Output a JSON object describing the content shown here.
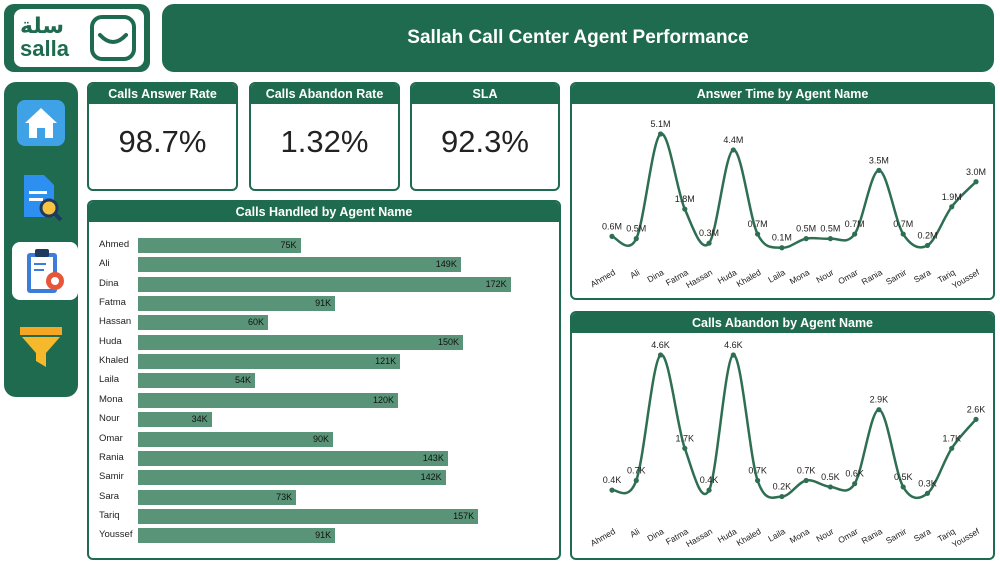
{
  "brand": {
    "arabic_name": "سلة",
    "latin_name": "salla"
  },
  "header": {
    "title": "Sallah Call Center Agent Performance"
  },
  "sidebar": {
    "items": [
      {
        "icon": "home-icon"
      },
      {
        "icon": "document-search-icon"
      },
      {
        "icon": "clipboard-gear-icon",
        "active": true
      },
      {
        "icon": "filter-icon"
      }
    ]
  },
  "kpis": [
    {
      "title": "Calls Answer Rate",
      "value": "98.7%"
    },
    {
      "title": "Calls Abandon Rate",
      "value": "1.32%"
    },
    {
      "title": "SLA",
      "value": "92.3%"
    }
  ],
  "colors": {
    "primary": "#1f6b4f",
    "bar": "#5a9478"
  },
  "chart_data": [
    {
      "type": "bar",
      "orientation": "horizontal",
      "title": "Calls Handled by Agent Name",
      "categories": [
        "Ahmed",
        "Ali",
        "Dina",
        "Fatma",
        "Hassan",
        "Huda",
        "Khaled",
        "Laila",
        "Mona",
        "Nour",
        "Omar",
        "Rania",
        "Samir",
        "Sara",
        "Tariq",
        "Youssef"
      ],
      "values": [
        75,
        149,
        172,
        91,
        60,
        150,
        121,
        54,
        120,
        34,
        90,
        143,
        142,
        73,
        157,
        91
      ],
      "labels": [
        "75K",
        "149K",
        "172K",
        "91K",
        "60K",
        "150K",
        "121K",
        "54K",
        "120K",
        "34K",
        "90K",
        "143K",
        "142K",
        "73K",
        "157K",
        "91K"
      ],
      "xlim": [
        0,
        180
      ]
    },
    {
      "type": "line",
      "title": "Answer Time by Agent Name",
      "categories": [
        "Ahmed",
        "Ali",
        "Dina",
        "Fatma",
        "Hassan",
        "Huda",
        "Khaled",
        "Laila",
        "Mona",
        "Nour",
        "Omar",
        "Rania",
        "Samir",
        "Sara",
        "Tariq",
        "Youssef"
      ],
      "values": [
        0.6,
        0.5,
        5.1,
        1.8,
        0.3,
        4.4,
        0.7,
        0.1,
        0.5,
        0.5,
        0.7,
        3.5,
        0.7,
        0.2,
        1.9,
        3.0
      ],
      "labels": [
        "0.6M",
        "0.5M",
        "5.1M",
        "1.8M",
        "0.3M",
        "4.4M",
        "0.7M",
        "0.1M",
        "0.5M",
        "0.5M",
        "0.7M",
        "3.5M",
        "0.7M",
        "0.2M",
        "1.9M",
        "3.0M"
      ],
      "ylim": [
        0,
        5.1
      ]
    },
    {
      "type": "line",
      "title": "Calls Abandon by Agent Name",
      "categories": [
        "Ahmed",
        "Ali",
        "Dina",
        "Fatma",
        "Hassan",
        "Huda",
        "Khaled",
        "Laila",
        "Mona",
        "Nour",
        "Omar",
        "Rania",
        "Samir",
        "Sara",
        "Tariq",
        "Youssef"
      ],
      "values": [
        0.4,
        0.7,
        4.6,
        1.7,
        0.4,
        4.6,
        0.7,
        0.2,
        0.7,
        0.5,
        0.6,
        2.9,
        0.5,
        0.3,
        1.7,
        2.6
      ],
      "labels": [
        "0.4K",
        "0.7K",
        "4.6K",
        "1.7K",
        "0.4K",
        "4.6K",
        "0.7K",
        "0.2K",
        "0.7K",
        "0.5K",
        "0.6K",
        "2.9K",
        "0.5K",
        "0.3K",
        "1.7K",
        "2.6K"
      ],
      "ylim": [
        0,
        4.6
      ]
    }
  ]
}
